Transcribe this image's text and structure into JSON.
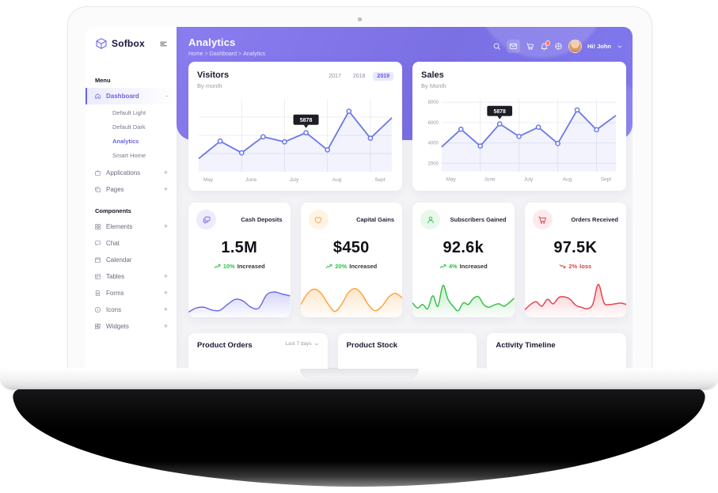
{
  "sidebar": {
    "logo_text": "Sofbox",
    "sections": [
      {
        "label": "Menu",
        "items": [
          {
            "icon": "home",
            "label": "Dashboard",
            "suffix": "-",
            "active": true,
            "children": [
              {
                "label": "Default Light",
                "active": false
              },
              {
                "label": "Default Dark",
                "active": false
              },
              {
                "label": "Analytics",
                "active": true
              },
              {
                "label": "Smart Home",
                "active": false
              }
            ]
          },
          {
            "icon": "briefcase",
            "label": "Applications",
            "suffix": "+"
          },
          {
            "icon": "pages",
            "label": "Pages",
            "suffix": "+"
          }
        ]
      },
      {
        "label": "Components",
        "items": [
          {
            "icon": "elements",
            "label": "Elements",
            "suffix": "+"
          },
          {
            "icon": "chat",
            "label": "Chat",
            "suffix": ""
          },
          {
            "icon": "calendar",
            "label": "Calendar",
            "suffix": ""
          },
          {
            "icon": "table",
            "label": "Tables",
            "suffix": "+"
          },
          {
            "icon": "forms",
            "label": "Forms",
            "suffix": "+"
          },
          {
            "icon": "info",
            "label": "Icons",
            "suffix": "+"
          },
          {
            "icon": "widgets",
            "label": "Widgets",
            "suffix": "+"
          }
        ]
      }
    ]
  },
  "header": {
    "title": "Analytics",
    "breadcrumb": [
      "Home",
      "Dashboard",
      "Analytics"
    ],
    "icons": [
      {
        "name": "search",
        "boxed": false,
        "badge": false
      },
      {
        "name": "mail",
        "boxed": true,
        "badge": false
      },
      {
        "name": "cart",
        "boxed": false,
        "badge": false
      },
      {
        "name": "bell",
        "boxed": false,
        "badge": true
      },
      {
        "name": "compass",
        "boxed": false,
        "badge": false
      }
    ],
    "user_greeting": "Hi! John",
    "banner_color": "#7e73e8"
  },
  "chart_data": [
    {
      "type": "line",
      "title": "Visitors",
      "subtitle": "By month",
      "tabs": [
        "2017",
        "2018",
        "2019"
      ],
      "active_tab": "2019",
      "x_labels": [
        "May",
        "June",
        "July",
        "Aug",
        "Sept"
      ],
      "values": [
        4100,
        5300,
        4500,
        5600,
        5250,
        5878,
        4700,
        7350,
        5500,
        6900
      ],
      "ylim": [
        3200,
        8200
      ],
      "y_ticks": [],
      "grid": true,
      "legend_position": "none",
      "tooltip": {
        "index": 5,
        "value": "5878"
      },
      "color": "#6b77e8"
    },
    {
      "type": "line",
      "title": "Sales",
      "subtitle": "By Month",
      "x_labels": [
        "May",
        "June",
        "July",
        "Aug",
        "Sept"
      ],
      "y_ticks": [
        "8000",
        "6000",
        "4000",
        "2000"
      ],
      "values": [
        3600,
        5350,
        3700,
        5878,
        4650,
        5550,
        3950,
        7250,
        5300,
        6700
      ],
      "ylim": [
        1200,
        8300
      ],
      "grid": true,
      "legend_position": "none",
      "tooltip": {
        "index": 3,
        "value": "5878"
      },
      "color": "#6b77e8"
    }
  ],
  "stats": [
    {
      "icon": "chat-duo",
      "title": "Cash Deposits",
      "value": "1.5M",
      "trend_pct": "10%",
      "trend_label": "Increased",
      "direction": "up",
      "color": "#6f6ae8",
      "tint": "#edebfc",
      "trend_color": "#2fbf4a",
      "spark": [
        8,
        20,
        22,
        14,
        13,
        30,
        45,
        40,
        22,
        20,
        58,
        66,
        60,
        55
      ]
    },
    {
      "icon": "heart",
      "title": "Capital Gains",
      "value": "$450",
      "trend_pct": "20%",
      "trend_label": "Increased",
      "direction": "up",
      "color": "#ffa43d",
      "tint": "#fff3e3",
      "trend_color": "#2fbf4a",
      "spark": [
        30,
        62,
        74,
        62,
        32,
        10,
        30,
        64,
        76,
        60,
        28,
        12,
        26,
        52,
        62,
        48
      ]
    },
    {
      "icon": "user",
      "title": "Subscribers Gained",
      "value": "92.6k",
      "trend_pct": "4%",
      "trend_label": "Increased",
      "direction": "up",
      "color": "#35c249",
      "tint": "#e8f8ec",
      "trend_color": "#2fbf4a",
      "spark": [
        35,
        20,
        30,
        18,
        55,
        25,
        85,
        45,
        25,
        12,
        35,
        30,
        48,
        52,
        30,
        22,
        28,
        32,
        25,
        35,
        48
      ]
    },
    {
      "icon": "cart",
      "title": "Orders Received",
      "value": "97.5K",
      "trend_pct": "2%",
      "trend_label": "loss",
      "direction": "down",
      "color": "#e8414d",
      "tint": "#fdeaec",
      "trend_color": "#e8414d",
      "spark": [
        15,
        30,
        38,
        25,
        45,
        32,
        50,
        52,
        45,
        28,
        22,
        18,
        30,
        88,
        35,
        30,
        32,
        34,
        30
      ]
    }
  ],
  "panels": [
    {
      "title": "Product Orders",
      "filter": "Last 7 days"
    },
    {
      "title": "Product Stock",
      "filter": ""
    },
    {
      "title": "Activity Timeline",
      "filter": ""
    }
  ]
}
